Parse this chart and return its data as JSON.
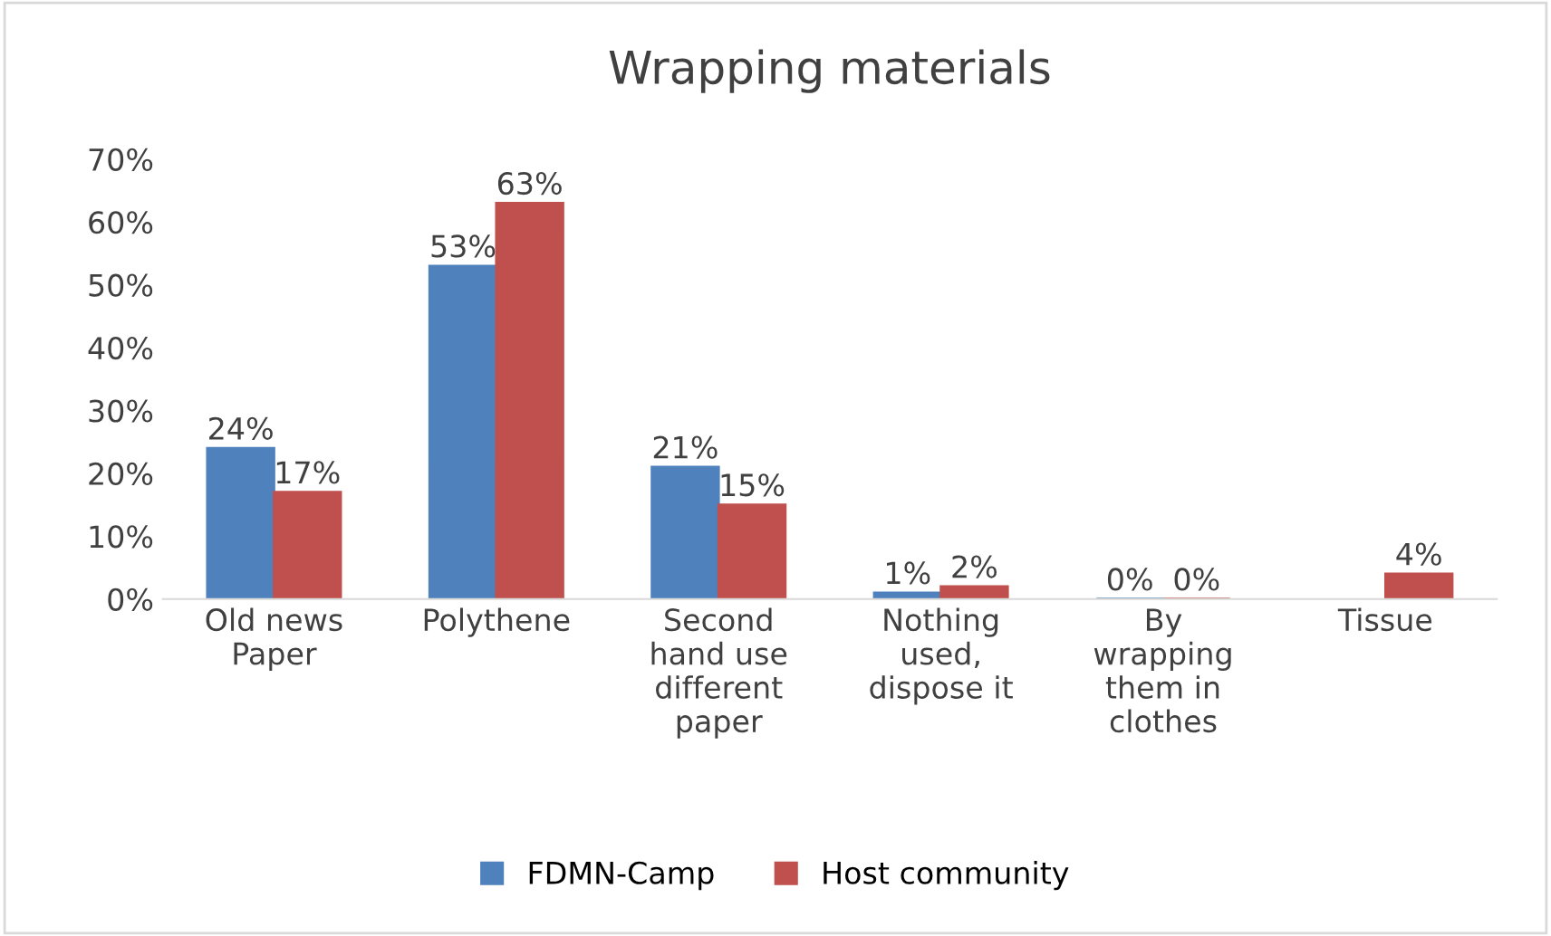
{
  "chart_data": {
    "type": "bar",
    "title": "Wrapping materials",
    "categories": [
      "Old news\nPaper",
      "Polythene",
      "Second\nhand use\ndifferent\npaper",
      "Nothing\nused,\ndispose it",
      "By\nwrapping\nthem in\nclothes",
      "Tissue"
    ],
    "series": [
      {
        "name": "FDMN-Camp",
        "color": "#4f81bd",
        "values": [
          24,
          53,
          21,
          1,
          0,
          null
        ],
        "value_labels": [
          "24%",
          "53%",
          "21%",
          "1%",
          "0%",
          null
        ]
      },
      {
        "name": "Host community",
        "color": "#c0504d",
        "values": [
          17,
          63,
          15,
          2,
          0,
          4
        ],
        "value_labels": [
          "17%",
          "63%",
          "15%",
          "2%",
          "0%",
          "4%"
        ]
      }
    ],
    "ylim": [
      0,
      70
    ],
    "yticks": [
      {
        "value": 0,
        "label": "0%"
      },
      {
        "value": 10,
        "label": "10%"
      },
      {
        "value": 20,
        "label": "20%"
      },
      {
        "value": 30,
        "label": "30%"
      },
      {
        "value": 40,
        "label": "40%"
      },
      {
        "value": 50,
        "label": "50%"
      },
      {
        "value": 60,
        "label": "60%"
      },
      {
        "value": 70,
        "label": "70%"
      }
    ],
    "grid": false,
    "legend": "bottom"
  }
}
